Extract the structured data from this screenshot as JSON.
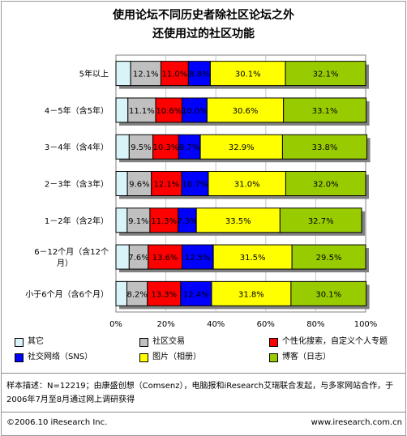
{
  "title": {
    "line1": "使用论坛不同历史者除社区论坛之外",
    "line2": "还使用过的社区功能"
  },
  "colors": {
    "其它": "#d9f4f8",
    "社区交易": "#c0c0c0",
    "个性化搜索，自定义个人专题": "#ff0000",
    "社交网络（SNS）": "#0000ff",
    "图片（相册）": "#ffff00",
    "博客（日志）": "#99cc00"
  },
  "chart_data": {
    "type": "bar",
    "orientation": "horizontal",
    "stacked": true,
    "title": "使用论坛不同历史者除社区论坛之外还使用过的社区功能",
    "categories": [
      "5年以上",
      "4－5年（含5年）",
      "3－4年（含4年）",
      "2－3年（含3年）",
      "1－2年（含2年）",
      "6－12个月（含12个月）",
      "小于6个月（含6个月）"
    ],
    "category_lines": [
      [
        "5年以上"
      ],
      [
        "4－5年（含5年）"
      ],
      [
        "3－4年（含4年）"
      ],
      [
        "2－3年（含3年）"
      ],
      [
        "1－2年（含2年）"
      ],
      [
        "6－12个月（含12个",
        "月）"
      ],
      [
        "小于6个月（含6个月）"
      ]
    ],
    "series": [
      {
        "name": "其它",
        "values": [
          5.9,
          4.8,
          5.3,
          4.6,
          4.5,
          5.3,
          4.4
        ],
        "labels": [
          "",
          "",
          "",
          "",
          "",
          "",
          ""
        ]
      },
      {
        "name": "社区交易",
        "values": [
          12.1,
          11.1,
          9.5,
          9.6,
          9.1,
          7.6,
          8.2
        ],
        "labels": [
          "12.1%",
          "11.1%",
          "9.5%",
          "9.6%",
          "9.1%",
          "7.6%",
          "8.2%"
        ]
      },
      {
        "name": "个性化搜索，自定义个人专题",
        "values": [
          11.0,
          10.6,
          10.3,
          12.1,
          11.3,
          13.6,
          13.3
        ],
        "labels": [
          "11.0%",
          "10.6%",
          "10.3%",
          "12.1%",
          "11.3%",
          "13.6%",
          "13.3%"
        ]
      },
      {
        "name": "社交网络（SNS）",
        "values": [
          8.8,
          10.0,
          8.7,
          10.7,
          7.3,
          12.5,
          12.4
        ],
        "labels": [
          "8.8%",
          "10.0%",
          "8.7%",
          "10.7%",
          "7.3%",
          "12.5%",
          "12.4%"
        ]
      },
      {
        "name": "图片（相册）",
        "values": [
          30.1,
          30.6,
          32.9,
          31.0,
          33.5,
          31.5,
          31.8
        ],
        "labels": [
          "30.1%",
          "30.6%",
          "32.9%",
          "31.0%",
          "33.5%",
          "31.5%",
          "31.8%"
        ]
      },
      {
        "name": "博客（日志）",
        "values": [
          32.1,
          33.1,
          33.8,
          32.0,
          32.7,
          29.5,
          30.1
        ],
        "labels": [
          "32.1%",
          "33.1%",
          "33.8%",
          "32.0%",
          "32.7%",
          "29.5%",
          "30.1%"
        ]
      }
    ],
    "xlim": [
      0,
      100
    ],
    "x_ticks": [
      "0%",
      "20%",
      "40%",
      "60%",
      "80%",
      "100%"
    ],
    "legend_position": "bottom"
  },
  "note": "样本描述：N=12219；由康盛创想（Comsenz），电脑报和iResearch艾瑞联合发起，与多家网站合作，于2006年7月至8月通过网上调研获得",
  "copyright": "©2006.10 iResearch Inc.",
  "website": "www.iresearch.com.cn"
}
